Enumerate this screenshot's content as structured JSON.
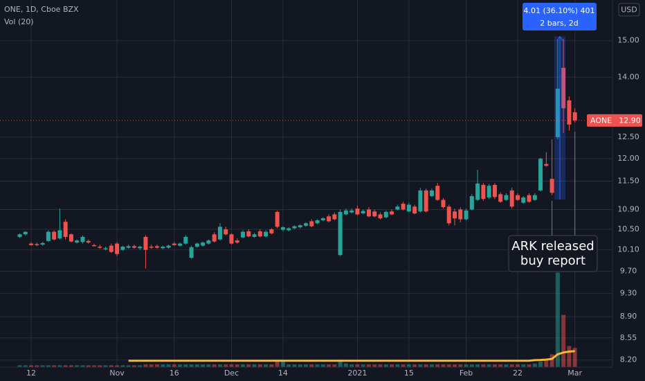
{
  "chart_data": {
    "type": "candlestick",
    "title": "ONE, 1D, Cboe BZX",
    "volume_label": "Vol (20)",
    "currency": "USD",
    "symbol": "AONE",
    "log_scale": true,
    "grid": true,
    "up_color": "#26a69a",
    "down_color": "#ef5350",
    "volume_ma_color": "#f7b731",
    "ylim": [
      8.09,
      16.2
    ],
    "vlim": [
      0,
      400
    ],
    "yticks": [
      {
        "value": 8.2,
        "label": "8.20"
      },
      {
        "value": 8.55,
        "label": "8.55"
      },
      {
        "value": 8.9,
        "label": "8.90"
      },
      {
        "value": 9.3,
        "label": "9.30"
      },
      {
        "value": 9.7,
        "label": "9.70"
      },
      {
        "value": 10.1,
        "label": "10.10"
      },
      {
        "value": 10.5,
        "label": "10.50"
      },
      {
        "value": 10.9,
        "label": "10.90"
      },
      {
        "value": 11.5,
        "label": "11.50"
      },
      {
        "value": 12.0,
        "label": "12.00"
      },
      {
        "value": 12.5,
        "label": "12.50"
      },
      {
        "value": 14.0,
        "label": "14.00"
      },
      {
        "value": 15.0,
        "label": "15.00"
      }
    ],
    "last_price": {
      "value": 12.9,
      "label": "12.90"
    },
    "categories": [
      null,
      null,
      "12",
      null,
      null,
      null,
      null,
      null,
      null,
      null,
      null,
      null,
      null,
      null,
      null,
      null,
      null,
      "Nov",
      null,
      null,
      null,
      null,
      null,
      null,
      null,
      null,
      null,
      "16",
      null,
      null,
      null,
      null,
      null,
      null,
      null,
      null,
      null,
      "Dec",
      null,
      null,
      null,
      null,
      null,
      null,
      null,
      null,
      "14",
      null,
      null,
      null,
      null,
      null,
      null,
      null,
      null,
      null,
      null,
      null,
      null,
      "2021",
      null,
      null,
      null,
      null,
      null,
      null,
      null,
      null,
      "15",
      null,
      null,
      null,
      null,
      null,
      null,
      null,
      null,
      null,
      "Feb",
      null,
      null,
      null,
      null,
      null,
      null,
      null,
      null,
      "22",
      null,
      null,
      null,
      null,
      null,
      null,
      null,
      null,
      null,
      "Mar"
    ],
    "open": [
      10.35,
      10.4,
      10.22,
      10.21,
      10.2,
      10.27,
      10.45,
      10.32,
      10.65,
      10.4,
      10.24,
      10.25,
      10.27,
      10.19,
      10.16,
      10.11,
      10.18,
      10.22,
      10.1,
      10.14,
      10.17,
      10.13,
      10.35,
      10.16,
      10.17,
      10.13,
      10.14,
      10.22,
      10.18,
      10.22,
      9.95,
      10.16,
      10.18,
      10.22,
      10.4,
      10.3,
      10.5,
      10.4,
      10.28,
      10.34,
      10.46,
      10.35,
      10.46,
      10.36,
      10.5,
      10.85,
      10.49,
      10.48,
      10.52,
      10.54,
      10.57,
      10.66,
      10.62,
      10.68,
      10.76,
      10.8,
      10.0,
      10.8,
      10.84,
      10.92,
      10.82,
      10.9,
      10.86,
      10.8,
      10.74,
      10.86,
      10.9,
      11.02,
      10.86,
      10.96,
      10.86,
      11.3,
      11.18,
      11.4,
      11.1,
      10.96,
      10.86,
      10.9,
      10.7,
      10.9,
      11.1,
      11.42,
      11.15,
      11.42,
      11.22,
      11.1,
      11.3,
      11.2,
      11.04,
      11.2,
      11.1,
      11.3,
      11.88,
      11.55,
      12.5,
      14.25,
      13.4,
      13.1
    ],
    "high": [
      10.42,
      10.46,
      10.25,
      10.24,
      10.25,
      10.48,
      10.48,
      10.92,
      10.7,
      10.42,
      10.3,
      10.38,
      10.3,
      10.22,
      10.2,
      10.16,
      10.22,
      10.25,
      10.18,
      10.2,
      10.2,
      10.18,
      10.38,
      10.2,
      10.2,
      10.18,
      10.2,
      10.25,
      10.24,
      10.38,
      10.18,
      10.24,
      10.26,
      10.3,
      10.44,
      10.62,
      10.55,
      10.42,
      10.32,
      10.48,
      10.5,
      10.43,
      10.5,
      10.48,
      10.52,
      10.88,
      10.56,
      10.54,
      10.58,
      10.6,
      10.64,
      10.7,
      10.7,
      10.74,
      10.8,
      10.84,
      10.9,
      10.92,
      10.92,
      10.98,
      10.9,
      10.95,
      10.9,
      10.84,
      10.88,
      10.9,
      11.0,
      11.06,
      11.04,
      11.0,
      11.35,
      11.34,
      11.34,
      11.46,
      11.14,
      11.0,
      10.92,
      10.94,
      10.92,
      11.22,
      11.75,
      11.46,
      11.44,
      11.46,
      11.26,
      11.24,
      11.36,
      11.24,
      11.18,
      11.24,
      11.24,
      12.02,
      12.15,
      12.45,
      15.05,
      15.05,
      13.5,
      13.2
    ],
    "low": [
      10.33,
      10.38,
      10.18,
      10.17,
      10.18,
      10.25,
      10.28,
      10.3,
      10.3,
      10.24,
      10.22,
      10.22,
      10.22,
      10.16,
      10.12,
      10.09,
      10.04,
      9.98,
      10.08,
      10.12,
      10.12,
      10.1,
      9.75,
      10.12,
      10.12,
      10.11,
      10.12,
      10.18,
      10.16,
      10.2,
      9.93,
      10.14,
      10.16,
      10.2,
      10.24,
      10.28,
      10.38,
      10.2,
      10.22,
      10.32,
      10.34,
      10.33,
      10.34,
      10.34,
      10.4,
      10.52,
      10.46,
      10.46,
      10.5,
      10.52,
      10.55,
      10.54,
      10.6,
      10.66,
      10.64,
      10.68,
      9.98,
      10.78,
      10.82,
      10.78,
      10.8,
      10.74,
      10.74,
      10.7,
      10.72,
      10.78,
      10.88,
      10.88,
      10.84,
      10.8,
      10.84,
      10.84,
      11.16,
      11.08,
      10.92,
      10.58,
      10.58,
      10.64,
      10.68,
      10.88,
      11.08,
      11.08,
      11.12,
      11.12,
      11.04,
      11.08,
      10.92,
      11.08,
      11.02,
      11.04,
      11.08,
      11.28,
      11.82,
      11.2,
      12.45,
      12.6,
      12.65,
      12.85
    ],
    "close": [
      10.4,
      10.45,
      10.19,
      10.19,
      10.23,
      10.45,
      10.3,
      10.48,
      10.35,
      10.26,
      10.28,
      10.35,
      10.24,
      10.17,
      10.14,
      10.13,
      10.06,
      10.02,
      10.16,
      10.17,
      10.14,
      10.16,
      10.1,
      10.14,
      10.14,
      10.16,
      10.18,
      10.19,
      10.22,
      10.35,
      10.15,
      10.22,
      10.24,
      10.28,
      10.26,
      10.55,
      10.4,
      10.22,
      10.24,
      10.45,
      10.36,
      10.4,
      10.36,
      10.45,
      10.42,
      10.55,
      10.54,
      10.52,
      10.56,
      10.58,
      10.62,
      10.56,
      10.68,
      10.72,
      10.66,
      10.7,
      10.85,
      10.88,
      10.88,
      10.8,
      10.87,
      10.76,
      10.76,
      10.72,
      10.85,
      10.8,
      10.96,
      10.9,
      11.0,
      10.82,
      11.3,
      10.86,
      11.3,
      11.1,
      10.95,
      10.62,
      10.72,
      10.7,
      10.88,
      11.18,
      11.45,
      11.12,
      11.4,
      11.16,
      11.06,
      11.2,
      10.96,
      11.1,
      11.15,
      11.06,
      11.2,
      12.0,
      11.84,
      11.25,
      13.7,
      13.2,
      12.8,
      12.9
    ],
    "volume": [
      2,
      2,
      2,
      2,
      2,
      2,
      2,
      2,
      2,
      2,
      2,
      2,
      2,
      2,
      2,
      2,
      2,
      2,
      2,
      2,
      2,
      2,
      3,
      3,
      3,
      3,
      3,
      3,
      3,
      3,
      3,
      3,
      3,
      3,
      3,
      3,
      3,
      3,
      3,
      3,
      3,
      3,
      3,
      3,
      3,
      8,
      6,
      3,
      3,
      3,
      3,
      3,
      3,
      3,
      3,
      3,
      8,
      4,
      3,
      3,
      3,
      3,
      3,
      3,
      3,
      3,
      3,
      3,
      3,
      3,
      3,
      3,
      3,
      3,
      3,
      3,
      3,
      3,
      3,
      3,
      3,
      3,
      3,
      3,
      3,
      3,
      3,
      3,
      3,
      3,
      4,
      6,
      8,
      14,
      103,
      57,
      23,
      21
    ],
    "volume_ma": [
      null,
      null,
      null,
      null,
      null,
      null,
      null,
      null,
      null,
      null,
      null,
      null,
      null,
      null,
      null,
      null,
      null,
      null,
      null,
      7,
      7,
      7,
      7,
      7,
      7,
      7,
      7,
      7,
      7,
      7,
      7,
      7,
      7,
      7,
      7,
      7,
      7,
      7,
      7,
      7,
      7,
      7,
      7,
      7,
      7,
      7,
      7,
      7,
      7,
      7,
      7,
      7,
      7,
      7,
      7,
      7,
      7,
      7,
      7,
      7,
      7,
      7,
      7,
      7,
      7,
      7,
      7,
      7,
      7,
      7,
      7,
      7,
      7,
      7,
      7,
      7,
      7,
      7,
      7,
      7,
      7,
      7,
      7,
      7,
      7,
      7,
      7,
      7,
      7,
      7,
      7.6,
      7.8,
      8.2,
      9,
      14,
      16,
      17,
      17.5
    ],
    "measure": {
      "label": "4.01 (36.10%) 401",
      "sublabel": "2 bars, 2d",
      "low": 11.11,
      "high": 15.12
    },
    "annotation": {
      "lines": [
        "ARK released",
        "buy report"
      ]
    }
  }
}
